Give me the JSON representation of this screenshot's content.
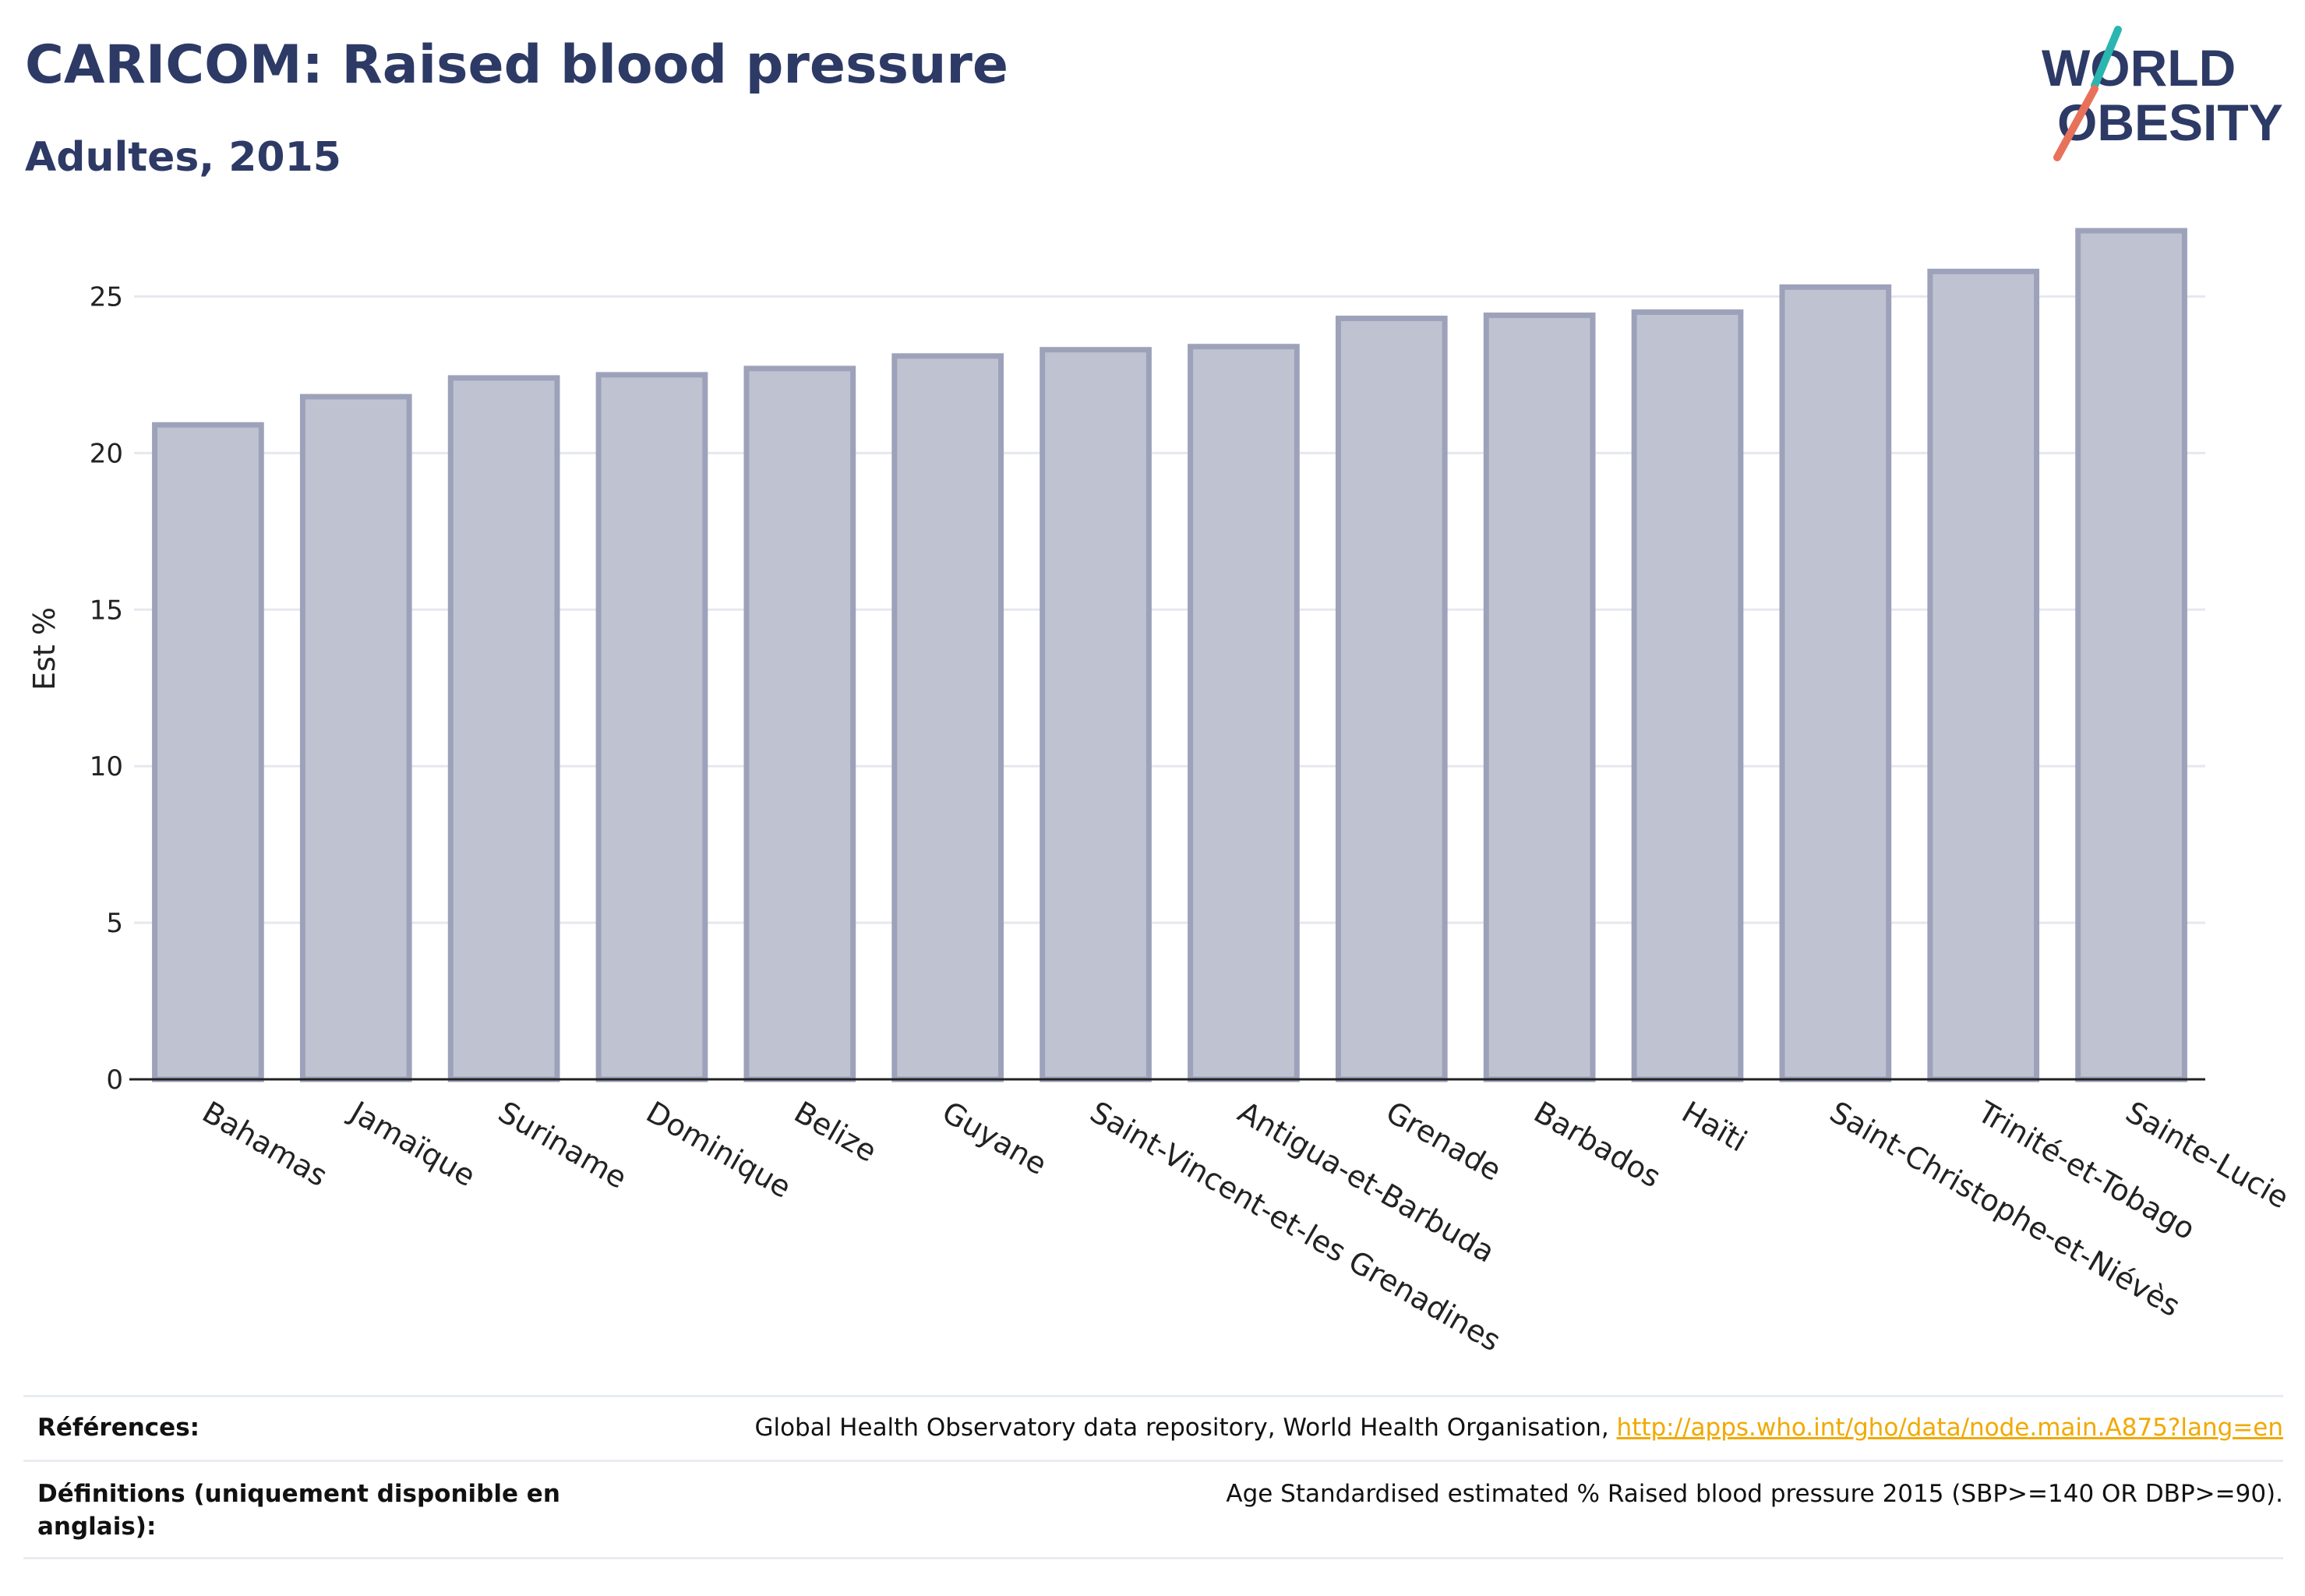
{
  "header": {
    "title": "CARICOM: Raised blood pressure",
    "subtitle": "Adultes, 2015"
  },
  "logo": {
    "line1": "WORLD",
    "line2": "OBESITY",
    "colors": {
      "text": "#2d3a66",
      "teal": "#2bb5b0",
      "coral": "#e8715a"
    }
  },
  "chart_data": {
    "type": "bar",
    "ylabel": "Est %",
    "ylim": [
      0,
      27.5
    ],
    "yticks": [
      0,
      5,
      10,
      15,
      20,
      25
    ],
    "grid": true,
    "categories": [
      "Bahamas",
      "Jamaïque",
      "Suriname",
      "Dominique",
      "Belize",
      "Guyane",
      "Saint-Vincent-et-les Grenadines",
      "Antigua-et-Barbuda",
      "Grenade",
      "Barbados",
      "Haïti",
      "Saint-Christophe-et-Niévès",
      "Trinité-et-Tobago",
      "Sainte-Lucie"
    ],
    "values": [
      20.9,
      21.8,
      22.4,
      22.5,
      22.7,
      23.1,
      23.3,
      23.4,
      24.3,
      24.4,
      24.5,
      25.3,
      25.8,
      27.1
    ],
    "colors": {
      "bar_fill": "#bfc3d1",
      "bar_stroke": "#9da2ba",
      "grid": "#e6e8ef",
      "axis": "#222222"
    }
  },
  "footer": {
    "references_label": "Références:",
    "references_text": "Global Health Observatory data repository, World Health Organisation, ",
    "references_link": "http://apps.who.int/gho/data/node.main.A875?lang=en",
    "definitions_label": "Définitions (uniquement disponible en anglais):",
    "definitions_text": "Age Standardised estimated % Raised blood pressure 2015 (SBP>=140 OR DBP>=90)."
  }
}
